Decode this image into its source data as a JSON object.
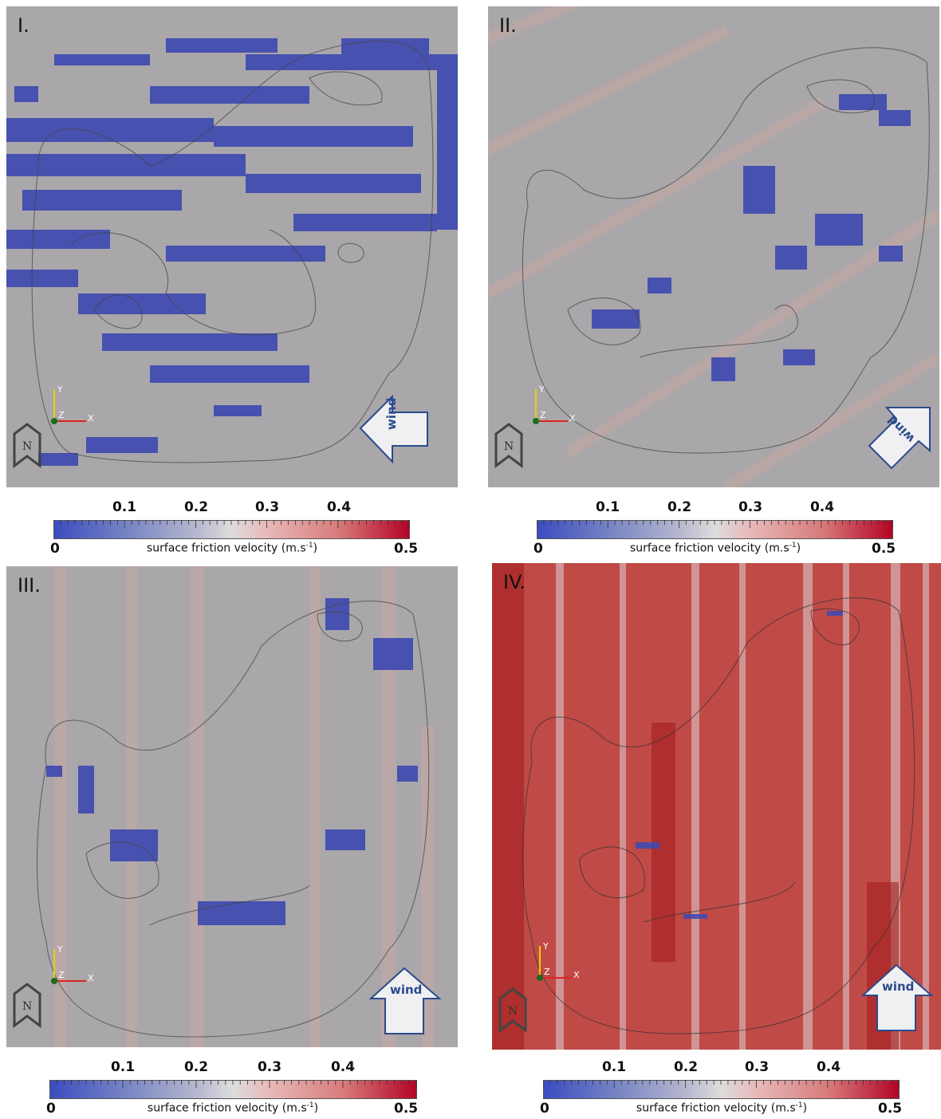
{
  "panels": [
    {
      "label": "I.",
      "wind": "wind",
      "colorbar": {
        "ticks": [
          "0.1",
          "0.2",
          "0.3",
          "0.4"
        ],
        "min": "0",
        "max": "0.5",
        "caption": "surface friction velocity (m.s",
        "caption_exp": "-1",
        "caption_end": ")"
      }
    },
    {
      "label": "II.",
      "wind": "wind",
      "colorbar": {
        "ticks": [
          "0.1",
          "0.2",
          "0.3",
          "0.4"
        ],
        "min": "0",
        "max": "0.5",
        "caption": "surface friction velocity (m.s",
        "caption_exp": "-1",
        "caption_end": ")"
      }
    },
    {
      "label": "III.",
      "wind": "wind",
      "colorbar": {
        "ticks": [
          "0.1",
          "0.2",
          "0.3",
          "0.4"
        ],
        "min": "0",
        "max": "0.5",
        "caption": "surface friction velocity (m.s",
        "caption_exp": "-1",
        "caption_end": ")"
      }
    },
    {
      "label": "IV.",
      "wind": "wind",
      "colorbar": {
        "ticks": [
          "0.1",
          "0.2",
          "0.3",
          "0.4"
        ],
        "min": "0",
        "max": "0.5",
        "caption": "surface friction velocity (m.s",
        "caption_exp": "-1",
        "caption_end": ")"
      }
    }
  ],
  "axes": {
    "x": "X",
    "y": "Y",
    "z": "Z"
  },
  "north": "N",
  "colors": {
    "low": "#3b4cc0",
    "mid": "#dddcdd",
    "high": "#b40426",
    "background": "#a9a7a9"
  }
}
